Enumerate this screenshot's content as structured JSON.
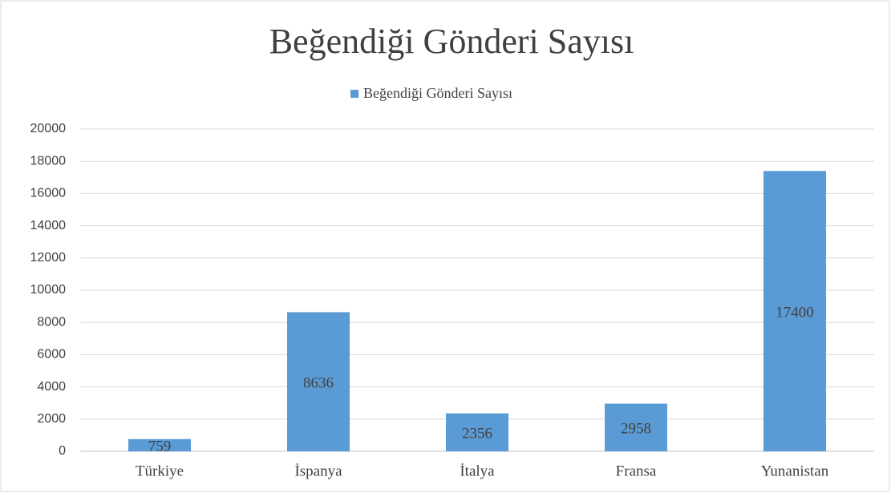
{
  "chart_data": {
    "type": "bar",
    "title": "Beğendiği Gönderi Sayısı",
    "categories": [
      "Türkiye",
      "İspanya",
      "İtalya",
      "Fransa",
      "Yunanistan"
    ],
    "series": [
      {
        "name": "Beğendiği Gönderi Sayısı",
        "color": "#5b9bd5",
        "values": [
          759,
          8636,
          2356,
          2958,
          17400
        ]
      }
    ],
    "ylim": [
      0,
      20000
    ],
    "yticks": [
      0,
      2000,
      4000,
      6000,
      8000,
      10000,
      12000,
      14000,
      16000,
      18000,
      20000
    ],
    "grid": true,
    "legend": "top"
  }
}
